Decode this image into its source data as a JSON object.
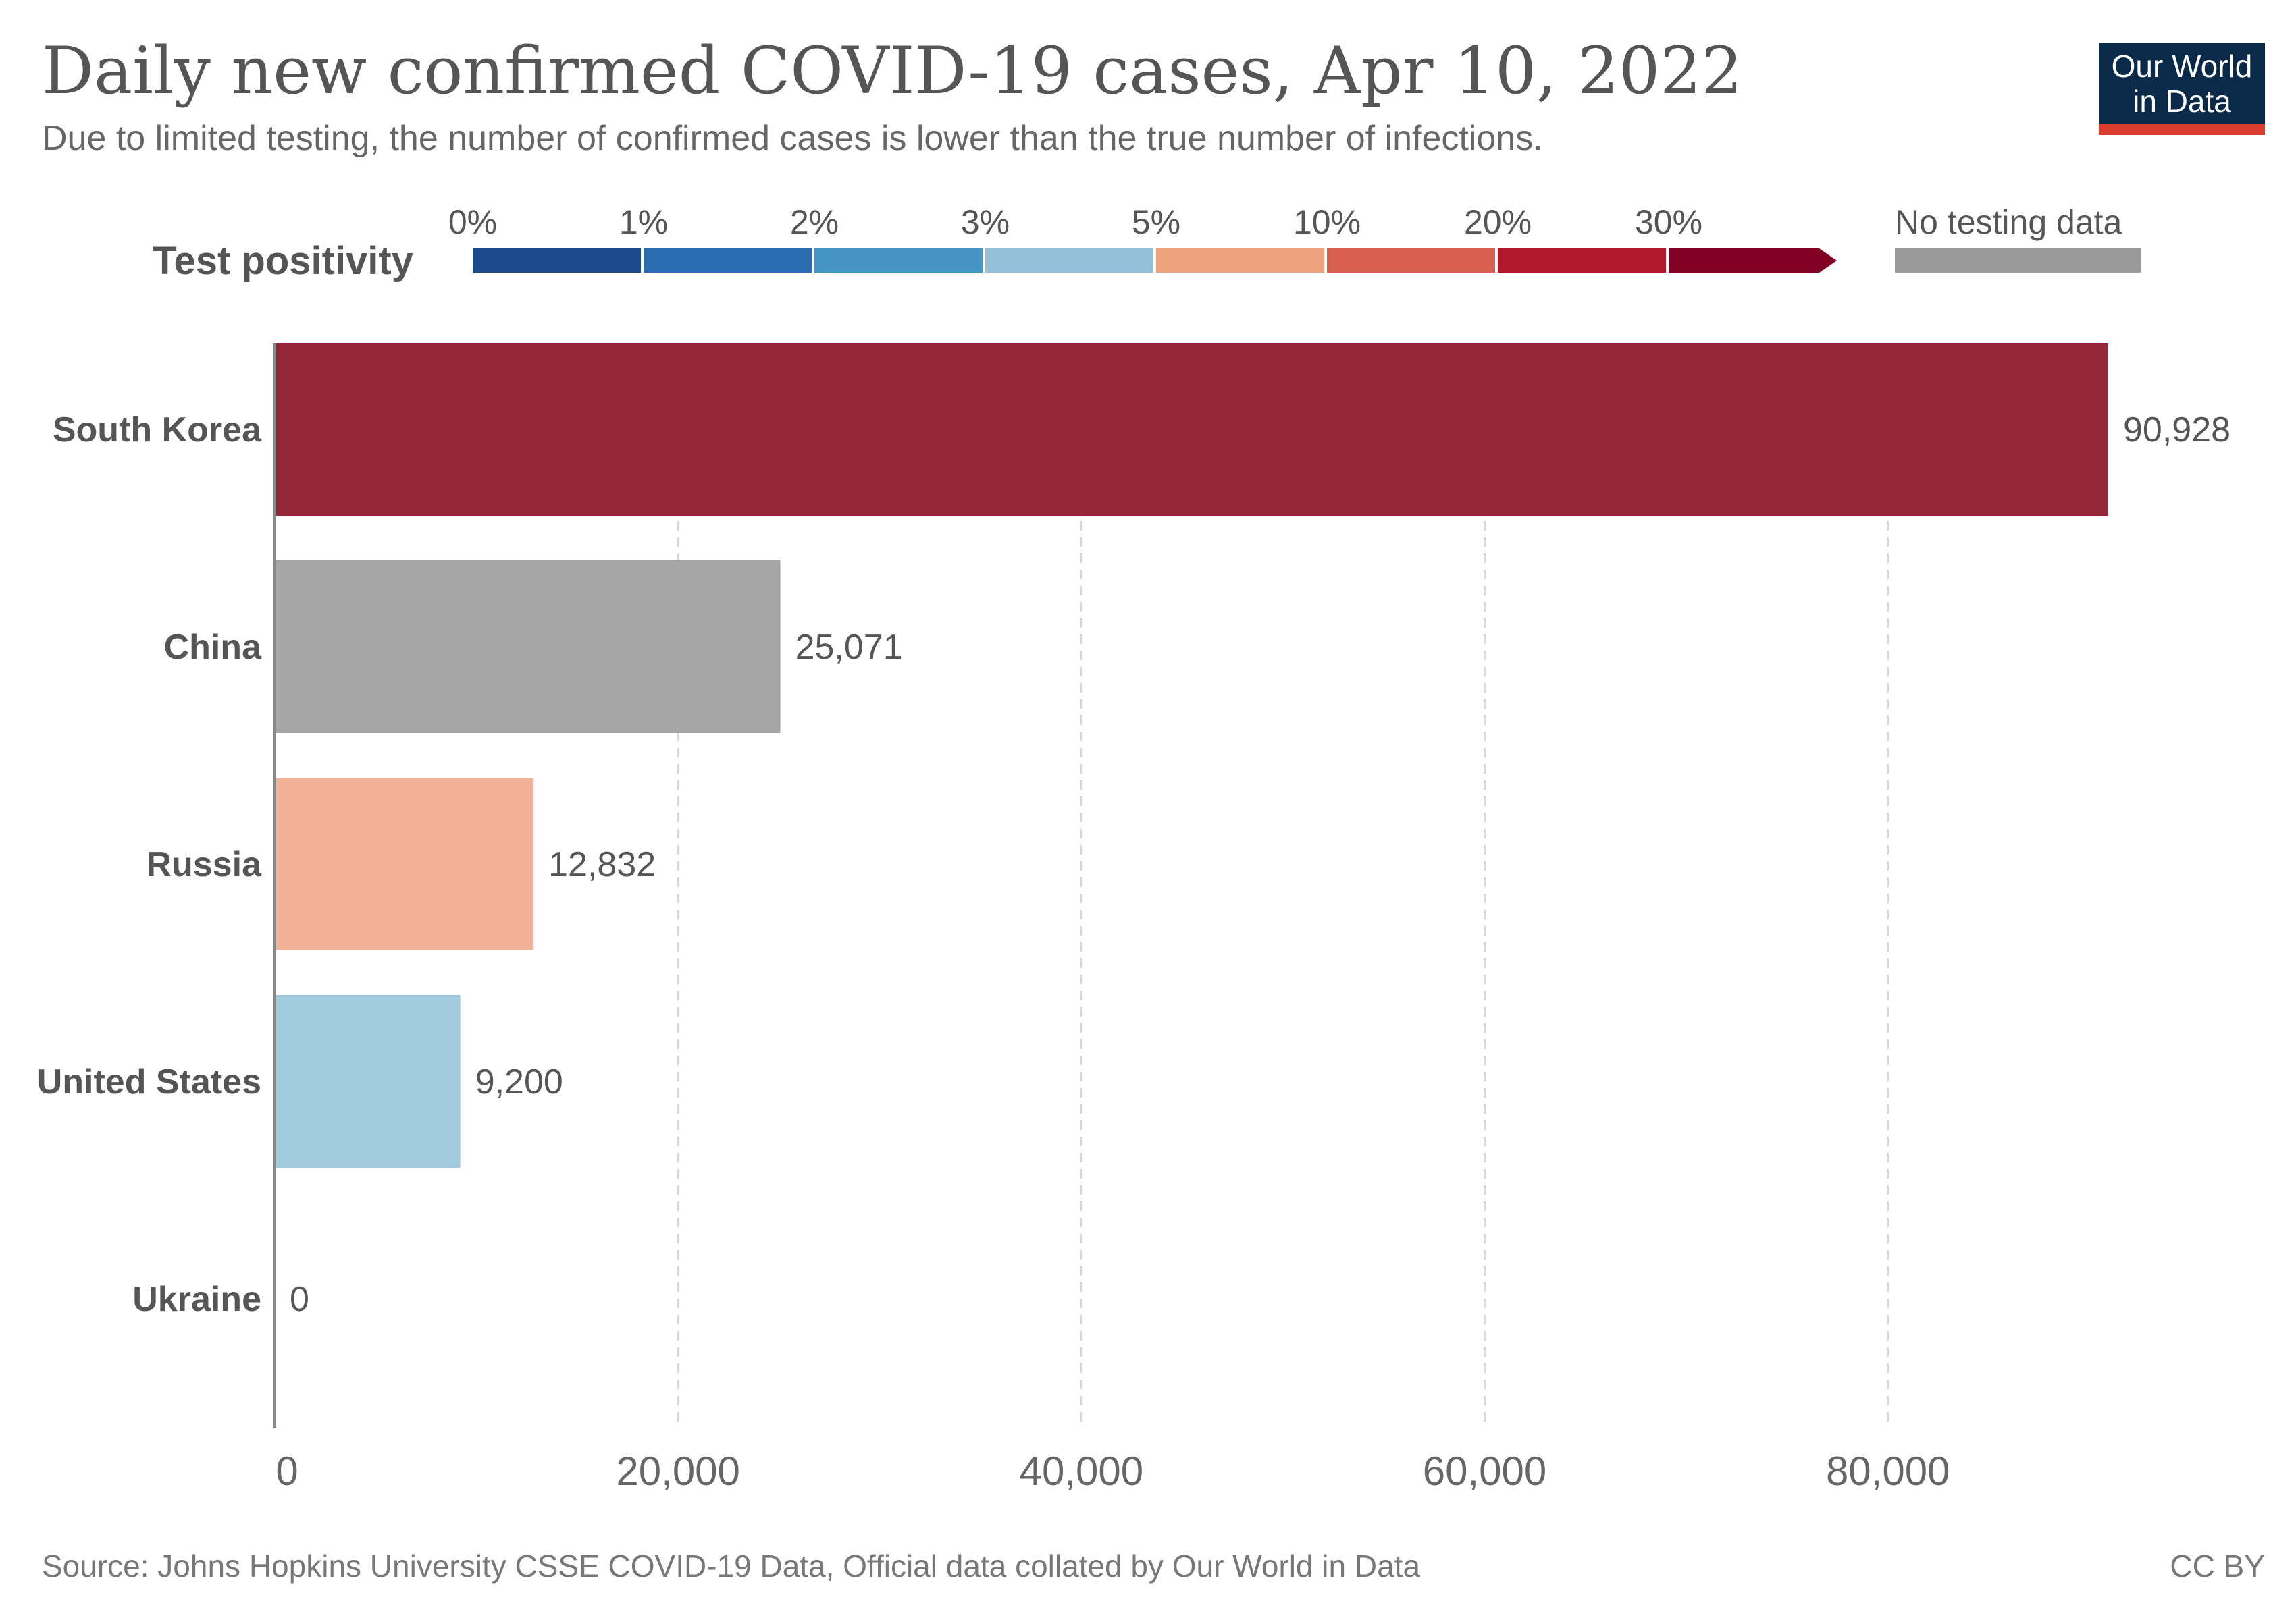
{
  "header": {
    "title": "Daily new confirmed COVID-19 cases, Apr 10, 2022",
    "subtitle": "Due to limited testing, the number of confirmed cases is lower than the true number of infections."
  },
  "logo": {
    "line1": "Our World",
    "line2": "in Data",
    "bg_color": "#0b2a4a",
    "accent_color": "#d73c2c"
  },
  "legend": {
    "title": "Test positivity",
    "bins": [
      {
        "label": "0%",
        "color": "#1d4a8a"
      },
      {
        "label": "1%",
        "color": "#2a6cb0"
      },
      {
        "label": "2%",
        "color": "#4594c4"
      },
      {
        "label": "3%",
        "color": "#94c0da"
      },
      {
        "label": "5%",
        "color": "#eda17d"
      },
      {
        "label": "10%",
        "color": "#d6604d"
      },
      {
        "label": "20%",
        "color": "#b2182b"
      },
      {
        "label": "30%",
        "color": "#7f0020"
      }
    ],
    "no_data_label": "No testing data",
    "no_data_color": "#999999"
  },
  "chart_data": {
    "type": "bar",
    "orientation": "horizontal",
    "title": "Daily new confirmed COVID-19 cases, Apr 10, 2022",
    "subtitle": "Due to limited testing, the number of confirmed cases is lower than the true number of infections.",
    "categories": [
      "South Korea",
      "China",
      "Russia",
      "United States",
      "Ukraine"
    ],
    "values": [
      90928,
      25071,
      12832,
      9200,
      0
    ],
    "value_labels": [
      "90,928",
      "25,071",
      "12,832",
      "9,200",
      "0"
    ],
    "colors": [
      "#952838",
      "#a6a6a6",
      "#f0b196",
      "#a2cade",
      "#a2cade"
    ],
    "xlim": [
      0,
      92000
    ],
    "xticks": [
      0,
      20000,
      40000,
      60000,
      80000
    ],
    "xtick_labels": [
      "0",
      "20,000",
      "40,000",
      "60,000",
      "80,000"
    ],
    "grid": "vertical dashed",
    "xlabel": "",
    "ylabel": ""
  },
  "footer": {
    "source": "Source: Johns Hopkins University CSSE COVID-19 Data, Official data collated by Our World in Data",
    "license": "CC BY"
  }
}
